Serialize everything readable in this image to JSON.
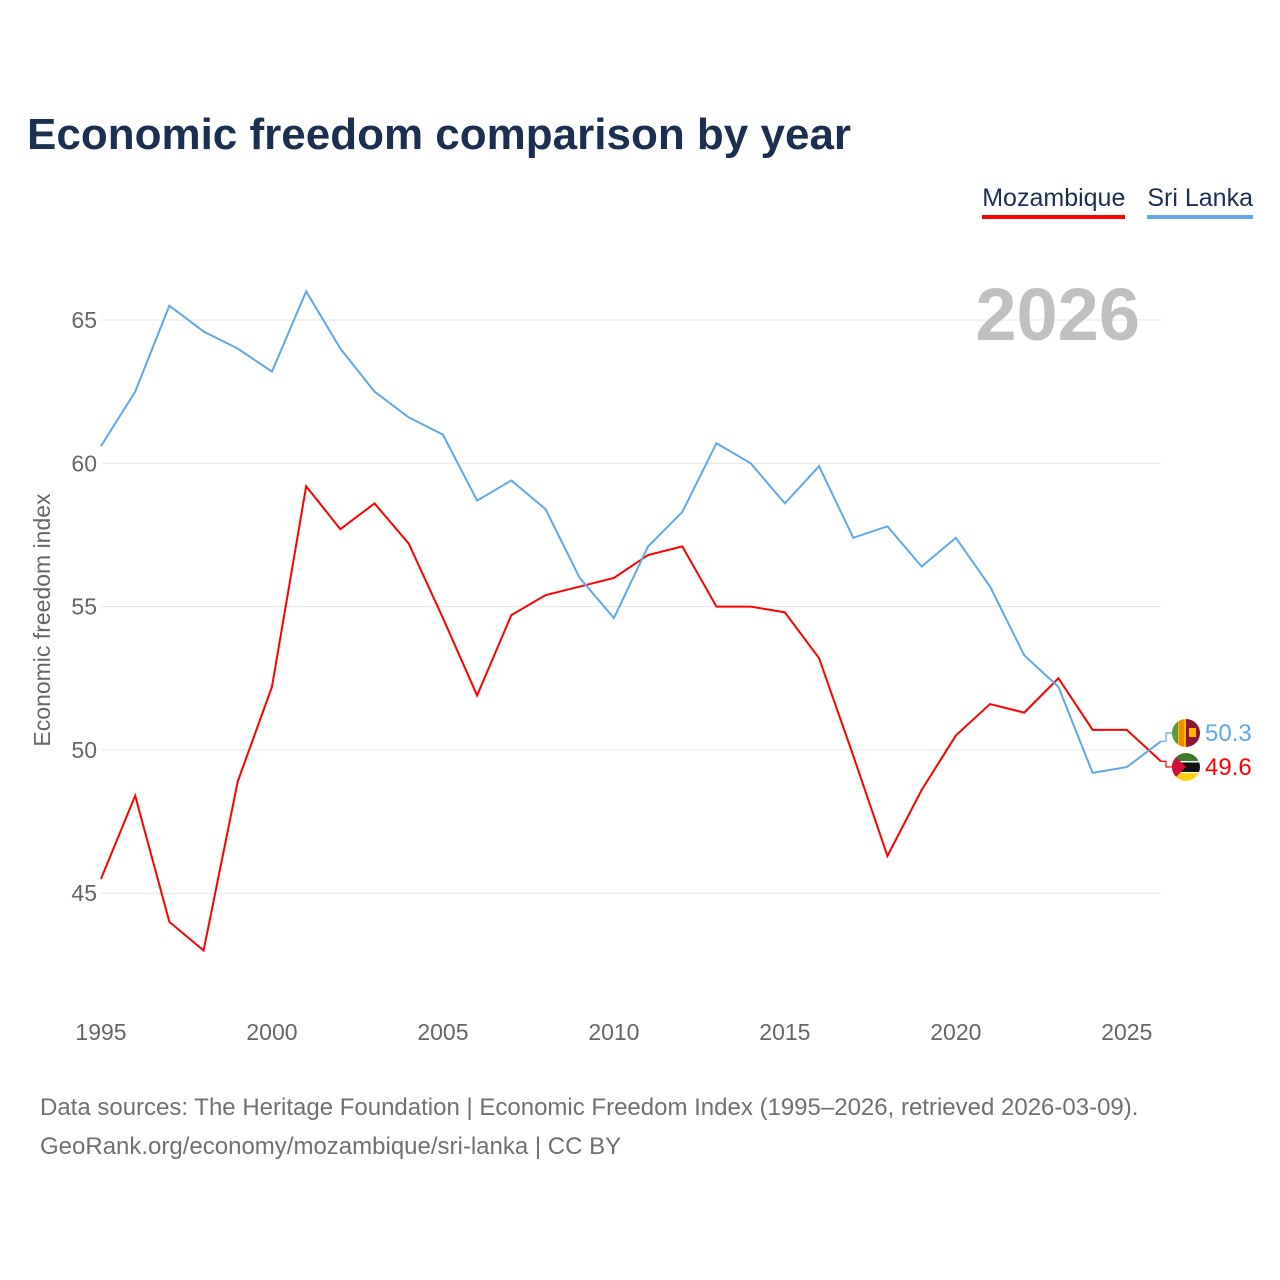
{
  "title": "Economic freedom comparison by year",
  "year_label": "2026",
  "source_line1": "Data sources: The Heritage Foundation | Economic Freedom Index (1995–2026, retrieved 2026-03-09).",
  "source_line2": "GeoRank.org/economy/mozambique/sri-lanka | CC BY",
  "chart_data": {
    "type": "line",
    "title": "Economic freedom comparison by year",
    "xlabel": "",
    "ylabel": "Economic freedom index",
    "xlim": [
      1995,
      2026
    ],
    "ylim": [
      41,
      67
    ],
    "x_ticks": [
      1995,
      2000,
      2005,
      2010,
      2015,
      2020,
      2025
    ],
    "y_ticks": [
      45,
      50,
      55,
      60,
      65
    ],
    "grid": true,
    "legend_position": "top-right",
    "x": [
      1995,
      1996,
      1997,
      1998,
      1999,
      2000,
      2001,
      2002,
      2003,
      2004,
      2005,
      2006,
      2007,
      2008,
      2009,
      2010,
      2011,
      2012,
      2013,
      2014,
      2015,
      2016,
      2017,
      2018,
      2019,
      2020,
      2021,
      2022,
      2023,
      2024,
      2025,
      2026
    ],
    "series": [
      {
        "name": "Mozambique",
        "color": "#ff0000",
        "end_label": "49.6",
        "values": [
          45.5,
          48.4,
          44.0,
          43.0,
          48.9,
          52.2,
          59.2,
          57.7,
          58.6,
          57.2,
          54.6,
          51.9,
          54.7,
          55.4,
          55.7,
          56.0,
          56.8,
          57.1,
          55.0,
          55.0,
          54.8,
          53.2,
          49.8,
          46.3,
          48.6,
          50.5,
          51.6,
          51.3,
          52.5,
          50.7,
          50.7,
          49.6
        ]
      },
      {
        "name": "Sri Lanka",
        "color": "#5fa8e8",
        "end_label": "50.3",
        "values": [
          60.6,
          62.5,
          65.5,
          64.6,
          64.0,
          63.2,
          66.0,
          64.0,
          62.5,
          61.6,
          61.0,
          58.7,
          59.4,
          58.4,
          56.0,
          54.6,
          57.1,
          58.3,
          60.7,
          60.0,
          58.6,
          59.9,
          57.4,
          57.8,
          56.4,
          57.4,
          55.7,
          53.3,
          52.2,
          49.2,
          49.4,
          50.3
        ]
      }
    ]
  }
}
